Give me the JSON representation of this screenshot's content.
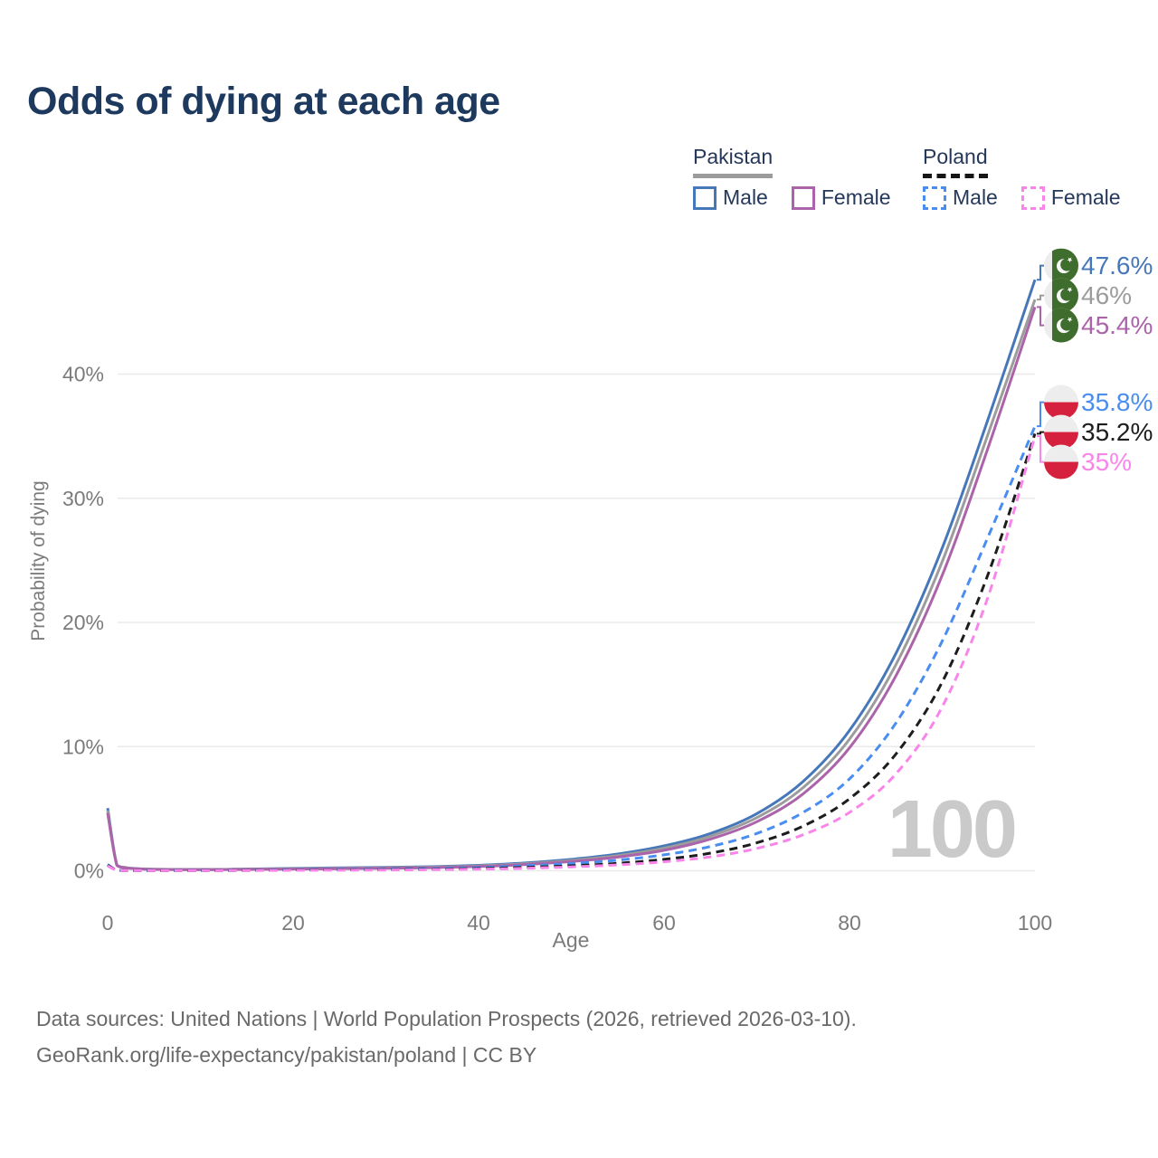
{
  "chart_data": {
    "type": "line",
    "title": "Odds of dying at each age",
    "xlabel": "Age",
    "ylabel": "Probability of dying",
    "xlim": [
      0,
      100
    ],
    "ylim": [
      0,
      49
    ],
    "grid": true,
    "legend_position": "top-right",
    "watermark": "100",
    "x_ticks": {
      "values": [
        0,
        20,
        40,
        60,
        80,
        100
      ],
      "labels": [
        "0",
        "20",
        "40",
        "60",
        "80",
        "100"
      ]
    },
    "y_ticks": {
      "values": [
        0,
        10,
        20,
        30,
        40
      ],
      "labels": [
        "0%",
        "10%",
        "20%",
        "30%",
        "40%"
      ]
    },
    "x": [
      0,
      1,
      2,
      3,
      5,
      10,
      15,
      20,
      25,
      30,
      35,
      40,
      45,
      50,
      55,
      60,
      65,
      70,
      75,
      80,
      85,
      90,
      95,
      100
    ],
    "series": [
      {
        "id": "pakistan-male",
        "name": "Pakistan Male",
        "country": "Pakistan",
        "sex": "Male",
        "color": "#4577b9",
        "line_style": "solid",
        "flag": "pakistan",
        "end_label": "47.6%",
        "end_value": 47.6,
        "values": [
          5.05,
          0.45,
          0.25,
          0.18,
          0.12,
          0.1,
          0.14,
          0.19,
          0.23,
          0.27,
          0.33,
          0.44,
          0.63,
          0.92,
          1.35,
          2.0,
          3.0,
          4.6,
          7.2,
          11.3,
          17.5,
          26.0,
          36.5,
          47.6
        ]
      },
      {
        "id": "pakistan-both",
        "name": "Pakistan",
        "country": "Pakistan",
        "sex": "Both",
        "color": "#9c9c9c",
        "line_style": "solid",
        "flag": "pakistan",
        "end_label": "46%",
        "end_value": 46,
        "values": [
          4.85,
          0.43,
          0.24,
          0.17,
          0.115,
          0.095,
          0.125,
          0.165,
          0.2,
          0.235,
          0.29,
          0.39,
          0.56,
          0.83,
          1.22,
          1.82,
          2.78,
          4.28,
          6.7,
          10.6,
          16.6,
          24.9,
          35.3,
          46.0
        ]
      },
      {
        "id": "pakistan-female",
        "name": "Pakistan Female",
        "country": "Pakistan",
        "sex": "Female",
        "color": "#ab63a9",
        "line_style": "solid",
        "flag": "pakistan",
        "end_label": "45.4%",
        "end_value": 45.4,
        "values": [
          4.65,
          0.42,
          0.23,
          0.16,
          0.11,
          0.09,
          0.11,
          0.14,
          0.17,
          0.2,
          0.25,
          0.34,
          0.5,
          0.74,
          1.1,
          1.65,
          2.55,
          3.95,
          6.2,
          9.9,
          15.7,
          23.8,
          34.2,
          45.4
        ]
      },
      {
        "id": "poland-male",
        "name": "Poland Male",
        "country": "Poland",
        "sex": "Male",
        "color": "#4a8df0",
        "line_style": "dashed",
        "flag": "poland",
        "end_label": "35.8%",
        "end_value": 35.8,
        "values": [
          0.5,
          0.04,
          0.02,
          0.015,
          0.012,
          0.015,
          0.04,
          0.09,
          0.11,
          0.13,
          0.18,
          0.26,
          0.4,
          0.58,
          0.85,
          1.28,
          1.95,
          3.0,
          4.7,
          7.4,
          11.9,
          18.5,
          27.0,
          35.8
        ]
      },
      {
        "id": "poland-both",
        "name": "Poland",
        "country": "Poland",
        "sex": "Both",
        "color": "#1d1d1d",
        "line_style": "dashed",
        "flag": "poland",
        "end_label": "35.2%",
        "end_value": 35.2,
        "values": [
          0.45,
          0.035,
          0.018,
          0.013,
          0.01,
          0.012,
          0.03,
          0.06,
          0.075,
          0.09,
          0.12,
          0.18,
          0.27,
          0.4,
          0.6,
          0.92,
          1.42,
          2.25,
          3.6,
          5.8,
          9.4,
          15.2,
          24.0,
          35.2
        ]
      },
      {
        "id": "poland-female",
        "name": "Poland Female",
        "country": "Poland",
        "sex": "Female",
        "color": "#f985ea",
        "line_style": "dashed",
        "flag": "poland",
        "end_label": "35%",
        "end_value": 35.0,
        "values": [
          0.4,
          0.03,
          0.015,
          0.012,
          0.009,
          0.01,
          0.02,
          0.035,
          0.045,
          0.06,
          0.085,
          0.13,
          0.2,
          0.31,
          0.47,
          0.72,
          1.12,
          1.8,
          2.9,
          4.7,
          7.8,
          13.2,
          22.2,
          35.0
        ]
      }
    ],
    "colors": {
      "grid": "#eaeaea",
      "tick_text": "#7b7b7b",
      "pakistan_flag_green": "#3f6d2d",
      "poland_flag_red": "#d6213e",
      "flag_white": "#ededed"
    }
  },
  "legend": {
    "groups": [
      {
        "country": "Pakistan",
        "style": "solid",
        "underline_color": "#9b9b9b",
        "items": [
          {
            "label": "Male",
            "color": "#4577b9"
          },
          {
            "label": "Female",
            "color": "#ab63a9"
          }
        ]
      },
      {
        "country": "Poland",
        "style": "dashed",
        "underline_color": "#161616",
        "items": [
          {
            "label": "Male",
            "color": "#4a8df0"
          },
          {
            "label": "Female",
            "color": "#f985ea"
          }
        ]
      }
    ]
  },
  "footer": {
    "line1": "Data sources: United Nations | World Population Prospects (2026, retrieved 2026-03-10).",
    "line2": "GeoRank.org/life-expectancy/pakistan/poland | CC BY"
  }
}
